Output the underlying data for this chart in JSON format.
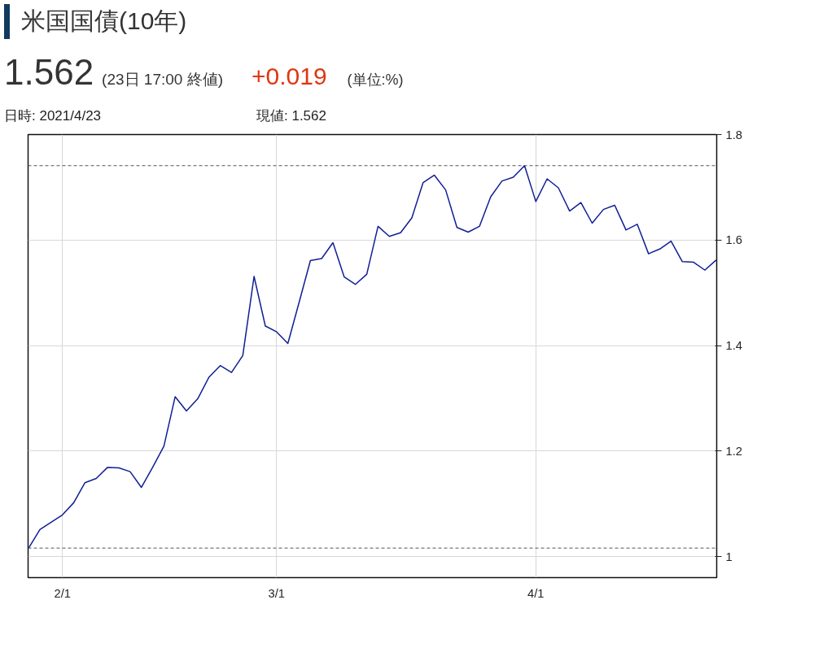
{
  "chart_data": {
    "type": "line",
    "title": "米国国債(10年)",
    "annotations": [
      "1.562",
      "(23日 17:00 終値)",
      "+0.019",
      "(単位:%)",
      "日時: 2021/4/23",
      "現値: 1.562"
    ],
    "categories": [
      null,
      null,
      null,
      "2/1",
      null,
      null,
      null,
      null,
      null,
      null,
      null,
      null,
      null,
      null,
      null,
      null,
      null,
      null,
      null,
      null,
      null,
      null,
      "3/1",
      null,
      null,
      null,
      null,
      null,
      null,
      null,
      null,
      null,
      null,
      null,
      null,
      null,
      null,
      null,
      null,
      null,
      null,
      null,
      null,
      null,
      null,
      "4/1",
      null,
      null,
      null,
      null,
      null,
      null,
      null,
      null,
      null,
      null,
      null,
      null,
      null,
      null,
      null,
      null
    ],
    "series": [
      {
        "color": "#101f94",
        "values": [
          1.016,
          1.051,
          1.065,
          1.079,
          1.102,
          1.14,
          1.148,
          1.169,
          1.168,
          1.161,
          1.131,
          1.169,
          1.209,
          1.303,
          1.276,
          1.299,
          1.34,
          1.362,
          1.349,
          1.381,
          1.531,
          1.437,
          1.426,
          1.404,
          1.482,
          1.561,
          1.565,
          1.595,
          1.53,
          1.516,
          1.535,
          1.626,
          1.607,
          1.614,
          1.642,
          1.709,
          1.723,
          1.695,
          1.624,
          1.615,
          1.626,
          1.682,
          1.712,
          1.719,
          1.741,
          1.673,
          1.716,
          1.699,
          1.655,
          1.671,
          1.632,
          1.658,
          1.666,
          1.619,
          1.63,
          1.574,
          1.583,
          1.598,
          1.559,
          1.558,
          1.543,
          1.562
        ]
      }
    ],
    "ylim": [
      0.96,
      1.8
    ],
    "yticks": [
      {
        "value": 1,
        "label": "1"
      },
      {
        "value": 1.2,
        "label": "1.2"
      },
      {
        "value": 1.4,
        "label": "1.4"
      },
      {
        "value": 1.6,
        "label": "1.6"
      },
      {
        "value": 1.8,
        "label": "1.8"
      }
    ],
    "grid": true,
    "marker": "none",
    "line_style": "solid",
    "ref_lines": [
      {
        "axis": "y",
        "value": 1.741,
        "color": "#555555",
        "line_style": "dashed"
      },
      {
        "axis": "y",
        "value": 1.016,
        "color": "#555555",
        "line_style": "dashed"
      }
    ]
  }
}
